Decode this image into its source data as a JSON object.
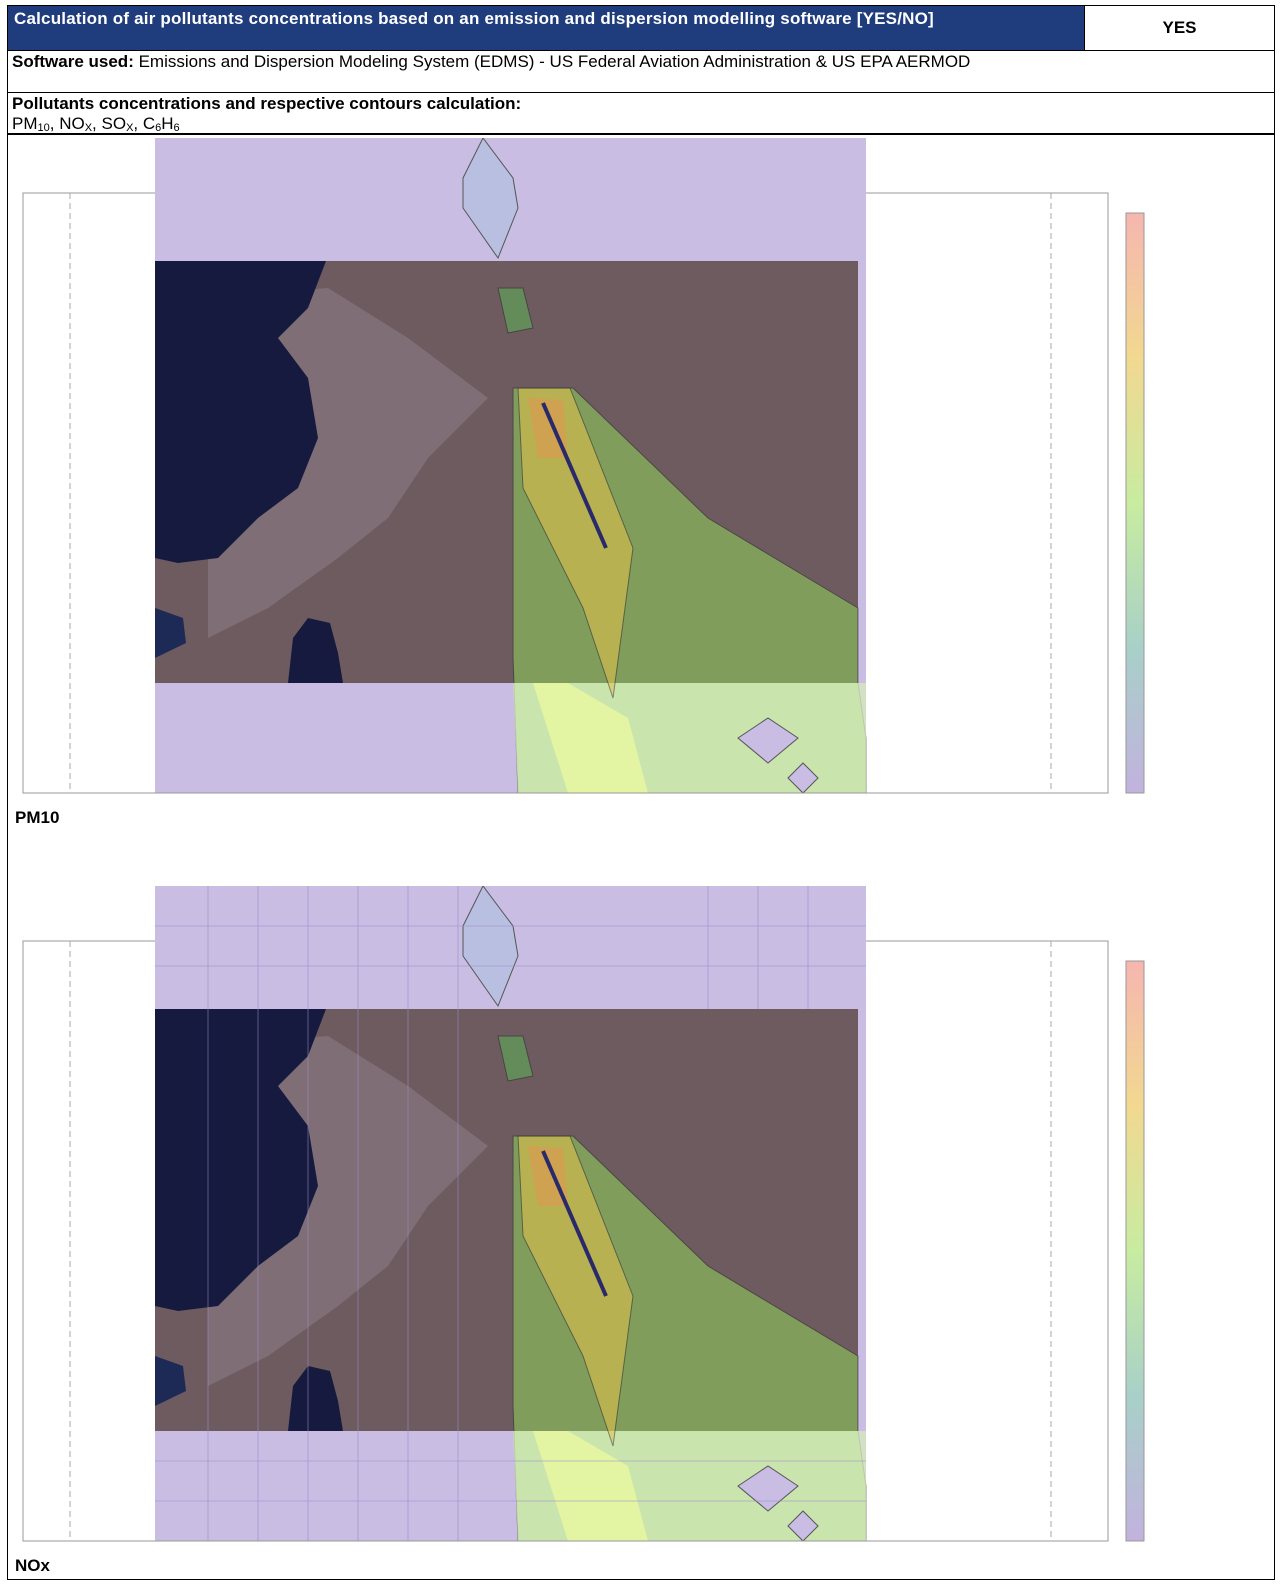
{
  "header": {
    "title": "Calculation of air pollutants concentrations based on an emission and dispersion modelling software   [YES/NO]",
    "answer": "YES"
  },
  "software": {
    "label": "Software used:",
    "text": " Emissions and Dispersion Modeling System (EDMS) - US Federal Aviation Administration & US EPA AERMOD"
  },
  "pollutants": {
    "label": "Pollutants concentrations and respective contours calculation:",
    "segments": [
      {
        "text": " PM"
      },
      {
        "sub": "10"
      },
      {
        "text": ", NO"
      },
      {
        "sub": "X"
      },
      {
        "text": ", SO"
      },
      {
        "sub": "X"
      },
      {
        "text": ", C"
      },
      {
        "sub": "6"
      },
      {
        "text": "H"
      },
      {
        "sub": "6"
      }
    ]
  },
  "figures": [
    {
      "caption": "PM10"
    },
    {
      "caption": "NOx"
    }
  ]
}
